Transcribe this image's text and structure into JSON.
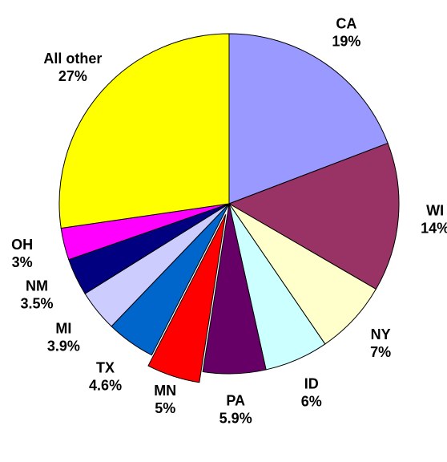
{
  "chart_data": {
    "type": "pie",
    "categories": [
      "CA",
      "WI",
      "NY",
      "ID",
      "PA",
      "MN",
      "TX",
      "MI",
      "NM",
      "OH",
      "All other"
    ],
    "values": [
      19,
      14,
      7,
      6,
      5.9,
      5,
      4.6,
      3.9,
      3.5,
      3,
      27
    ],
    "value_labels": [
      "19%",
      "14%",
      "7%",
      "6%",
      "5.9%",
      "5%",
      "4.6%",
      "3.9%",
      "3.5%",
      "3%",
      "27%"
    ],
    "colors": [
      "#9999ff",
      "#993366",
      "#ffffcc",
      "#ccffff",
      "#660066",
      "#ff0000",
      "#0066cc",
      "#ccccff",
      "#000080",
      "#ff00ff",
      "#ffff00"
    ],
    "exploded": [
      "MN"
    ]
  }
}
